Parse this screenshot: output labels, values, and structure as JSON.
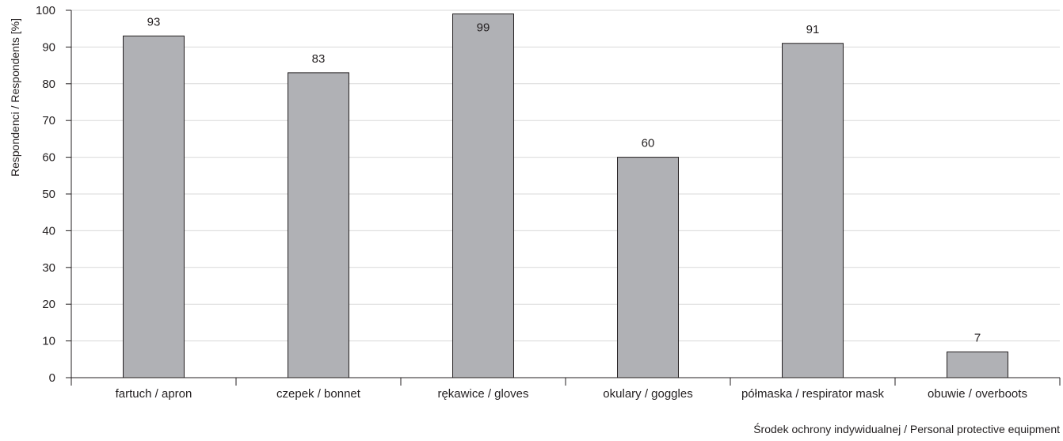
{
  "chart_data": {
    "type": "bar",
    "title": "",
    "xlabel": "Środek ochrony indywidualnej / Personal protective equipment",
    "ylabel": "Respondenci / Respondents [%]",
    "ylim": [
      0,
      100
    ],
    "yticks": [
      0,
      10,
      20,
      30,
      40,
      50,
      60,
      70,
      80,
      90,
      100
    ],
    "categories": [
      "fartuch / apron",
      "czepek / bonnet",
      "rękawice / gloves",
      "okulary / goggles",
      "półmaska / respirator mask",
      "obuwie / overboots"
    ],
    "values": [
      93,
      83,
      99,
      60,
      91,
      7
    ],
    "data_labels": [
      "93",
      "83",
      "99",
      "60",
      "91",
      "7"
    ],
    "grid": true,
    "legend": "none",
    "colors": {
      "bar_fill": "#b0b1b5",
      "bar_stroke": "#231f20",
      "grid": "#d9d9d9",
      "axis": "#231f20"
    }
  }
}
